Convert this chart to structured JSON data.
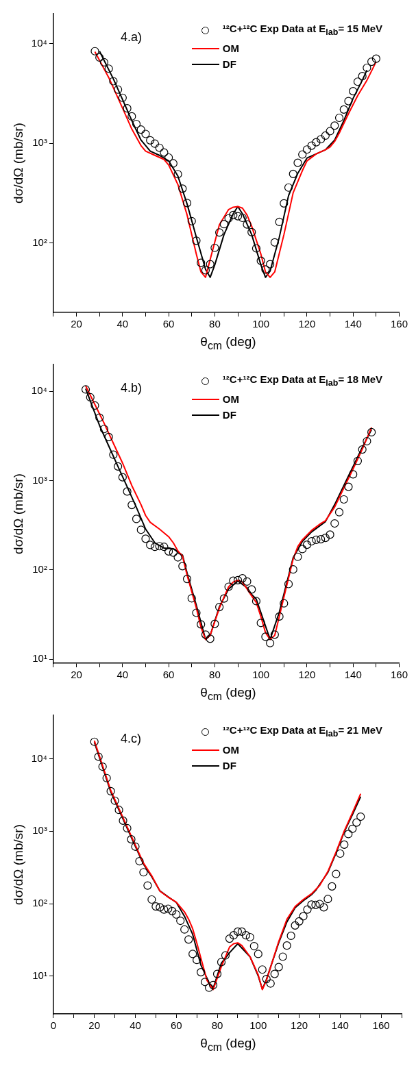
{
  "chart_data": [
    {
      "type": "scatter",
      "xlabel": "θ$_{cm}$ (deg)",
      "ylabel": "dσ/dΩ (mb/sr)",
      "log": "y",
      "xlim": [
        10,
        160
      ],
      "ylim": [
        20,
        20000
      ],
      "xticks": [
        {
          "value": 10,
          "label": null
        },
        20,
        {
          "value": 30,
          "label": null
        },
        40,
        {
          "value": 50,
          "label": null
        },
        60,
        {
          "value": 70,
          "label": null
        },
        80,
        {
          "value": 90,
          "label": null
        },
        100,
        {
          "value": 110,
          "label": null
        },
        120,
        {
          "value": 130,
          "label": null
        },
        140,
        {
          "value": 150,
          "label": null
        },
        160
      ],
      "yticks": [
        {
          "value": 100,
          "label": "10²"
        },
        {
          "value": 1000,
          "label": "10³"
        },
        {
          "value": 10000,
          "label": "10⁴"
        }
      ],
      "legend": "top right",
      "grid": false,
      "annotations": [
        "4.a)"
      ],
      "series": [
        {
          "name": "¹²C+¹²C Exp Data at E$_{lab}$= 15 MeV",
          "marker": "circle",
          "color": "#000000",
          "x": [
            28,
            30,
            32,
            34,
            36,
            38,
            40,
            42,
            44,
            46,
            48,
            50,
            52,
            54,
            56,
            58,
            60,
            62,
            64,
            66,
            68,
            70,
            72,
            74,
            76,
            78,
            80,
            82,
            84,
            86,
            88,
            90,
            92,
            94,
            96,
            98,
            100,
            102,
            104,
            106,
            108,
            110,
            112,
            114,
            116,
            118,
            120,
            122,
            124,
            126,
            128,
            130,
            132,
            134,
            136,
            138,
            140,
            142,
            144,
            146,
            148,
            150
          ],
          "values": [
            8400,
            7260,
            6500,
            5610,
            4200,
            3460,
            2860,
            2240,
            1860,
            1560,
            1370,
            1240,
            1070,
            990,
            900,
            807,
            718,
            628,
            489,
            350,
            251,
            165,
            105,
            63,
            53,
            61,
            89,
            127,
            154,
            176,
            190,
            185,
            178,
            153,
            128,
            88,
            66,
            54,
            61,
            101,
            162,
            249,
            359,
            492,
            636,
            771,
            865,
            946,
            1023,
            1097,
            1193,
            1322,
            1503,
            1800,
            2180,
            2650,
            3330,
            4150,
            4720,
            5720,
            6590,
            7070
          ]
        },
        {
          "name": "OM",
          "type": "line",
          "marker": "none",
          "line_style": "solid",
          "color": "#ff0000",
          "x": [
            28,
            34,
            40,
            44,
            48,
            50,
            54,
            58,
            60,
            64,
            68,
            72,
            74,
            76,
            78,
            82,
            86,
            88,
            90,
            92,
            94,
            96,
            100,
            102,
            104,
            106,
            110,
            114,
            118,
            120,
            124,
            128,
            130,
            132,
            134,
            138,
            142,
            146,
            150
          ],
          "values": [
            8300,
            4570,
            2250,
            1390,
            946,
            832,
            756,
            687,
            604,
            385,
            190,
            77,
            51,
            45,
            68,
            152,
            216,
            228,
            231,
            223,
            190,
            147,
            77,
            51,
            45,
            51,
            121,
            318,
            531,
            665,
            782,
            859,
            917,
            1043,
            1265,
            1980,
            3010,
            4290,
            6590
          ]
        },
        {
          "name": "DF",
          "type": "line",
          "marker": "none",
          "line_style": "solid",
          "color": "#000000",
          "x": [
            30,
            36,
            40,
            44,
            48,
            52,
            56,
            60,
            64,
            68,
            72,
            76,
            78,
            80,
            84,
            88,
            90,
            92,
            96,
            100,
            102,
            104,
            108,
            112,
            116,
            120,
            124,
            128,
            132,
            136,
            140,
            144,
            146
          ],
          "values": [
            8400,
            4430,
            2740,
            1690,
            1076,
            832,
            756,
            665,
            468,
            245,
            114,
            54,
            45,
            60,
            121,
            196,
            231,
            196,
            121,
            60,
            45,
            52,
            114,
            298,
            498,
            710,
            782,
            859,
            1076,
            1690,
            2820,
            4290,
            5430
          ]
        }
      ]
    },
    {
      "type": "scatter",
      "xlabel": "θ$_{cm}$ (deg)",
      "ylabel": "dσ/dΩ (mb/sr)",
      "log": "y",
      "xlim": [
        10,
        160
      ],
      "ylim": [
        9,
        20000
      ],
      "xticks": [
        {
          "value": 10,
          "label": null
        },
        20,
        {
          "value": 30,
          "label": null
        },
        40,
        {
          "value": 50,
          "label": null
        },
        60,
        {
          "value": 70,
          "label": null
        },
        80,
        {
          "value": 90,
          "label": null
        },
        100,
        {
          "value": 110,
          "label": null
        },
        120,
        {
          "value": 130,
          "label": null
        },
        140,
        {
          "value": 150,
          "label": null
        },
        160
      ],
      "yticks": [
        {
          "value": 10,
          "label": "10¹"
        },
        {
          "value": 100,
          "label": "10²"
        },
        {
          "value": 1000,
          "label": "10³"
        },
        {
          "value": 10000,
          "label": "10⁴"
        }
      ],
      "legend": "top right",
      "grid": false,
      "annotations": [
        "4.b)"
      ],
      "series": [
        {
          "name": "¹²C+¹²C Exp Data at E$_{lab}$= 18 MeV",
          "marker": "circle",
          "color": "#000000",
          "x": [
            24,
            26,
            28,
            30,
            32,
            34,
            36,
            38,
            40,
            42,
            44,
            46,
            48,
            50,
            52,
            54,
            56,
            58,
            60,
            62,
            64,
            66,
            68,
            70,
            72,
            74,
            76,
            78,
            80,
            82,
            84,
            86,
            88,
            90,
            92,
            94,
            96,
            98,
            100,
            102,
            104,
            106,
            108,
            110,
            112,
            114,
            116,
            118,
            120,
            122,
            124,
            126,
            128,
            130,
            132,
            134,
            136,
            138,
            140,
            142,
            144,
            146,
            148
          ],
          "values": [
            10500,
            8570,
            6930,
            5080,
            3780,
            3080,
            1950,
            1440,
            1090,
            755,
            533,
            372,
            281,
            223,
            190,
            181,
            184,
            181,
            161,
            156,
            138,
            110,
            79,
            48,
            33,
            24.5,
            18.8,
            16.9,
            24.8,
            38.3,
            47.7,
            64.6,
            75.5,
            76.6,
            80.4,
            74,
            60.3,
            44.6,
            25.4,
            17.8,
            15.1,
            18.8,
            30,
            42.1,
            69.3,
            101,
            140,
            171,
            191,
            209,
            217,
            220,
            228,
            248,
            331,
            442,
            615,
            851,
            1175,
            1660,
            2230,
            2760,
            3480
          ]
        },
        {
          "name": "OM",
          "type": "line",
          "marker": "none",
          "line_style": "solid",
          "color": "#ff0000",
          "x": [
            24,
            32,
            36,
            40,
            44,
            48,
            50,
            52,
            56,
            60,
            62,
            64,
            66,
            68,
            72,
            74,
            76,
            78,
            80,
            82,
            84,
            86,
            88,
            90,
            92,
            94,
            96,
            98,
            100,
            102,
            104,
            106,
            108,
            110,
            112,
            114,
            116,
            118,
            122,
            126,
            128,
            132,
            136,
            140,
            144,
            148
          ],
          "values": [
            11500,
            4390,
            2620,
            1570,
            880,
            538,
            406,
            341,
            286,
            235,
            201,
            163,
            142,
            87,
            37.4,
            22.8,
            16.6,
            18.4,
            26.2,
            37.3,
            49.5,
            64.6,
            72.9,
            76.5,
            72.9,
            61,
            51,
            43,
            30,
            19.8,
            16.6,
            18.4,
            30,
            49.5,
            81,
            132,
            182,
            217,
            277,
            331,
            355,
            505,
            826,
            1350,
            2250,
            3940
          ]
        },
        {
          "name": "DF",
          "type": "line",
          "marker": "none",
          "line_style": "solid",
          "color": "#000000",
          "x": [
            24,
            30,
            34,
            38,
            42,
            46,
            50,
            54,
            58,
            62,
            66,
            68,
            72,
            76,
            78,
            82,
            86,
            90,
            94,
            96,
            98,
            104,
            108,
            114,
            118,
            122,
            128,
            132,
            136,
            140,
            144,
            148
          ],
          "values": [
            10700,
            4150,
            2440,
            1440,
            851,
            500,
            286,
            201,
            175,
            172,
            146,
            92,
            40,
            16.6,
            18.4,
            38.6,
            61,
            75,
            63,
            53,
            47,
            16.6,
            33.6,
            137,
            208,
            266,
            347,
            538,
            880,
            1440,
            2360,
            3730
          ]
        }
      ]
    },
    {
      "type": "scatter",
      "xlabel": "θ$_{cm}$ (deg)",
      "ylabel": "dσ/dΩ (mb/sr)",
      "log": "y",
      "xlim": [
        0,
        170
      ],
      "ylim": [
        3,
        40000
      ],
      "xticks": [
        0,
        {
          "value": 10,
          "label": null
        },
        20,
        {
          "value": 30,
          "label": null
        },
        40,
        {
          "value": 50,
          "label": null
        },
        60,
        {
          "value": 70,
          "label": null
        },
        80,
        {
          "value": 90,
          "label": null
        },
        100,
        {
          "value": 110,
          "label": null
        },
        120,
        {
          "value": 130,
          "label": null
        },
        140,
        {
          "value": 150,
          "label": null
        },
        160,
        {
          "value": 170,
          "label": null
        }
      ],
      "yticks": [
        {
          "value": 10,
          "label": "10¹"
        },
        {
          "value": 100,
          "label": "10²"
        },
        {
          "value": 1000,
          "label": "10³"
        },
        {
          "value": 10000,
          "label": "10⁴"
        }
      ],
      "legend": "top right",
      "grid": false,
      "annotations": [
        "4.c)"
      ],
      "series": [
        {
          "name": "¹²C+¹²C Exp Data at E$_{lab}$= 21 MeV",
          "marker": "circle",
          "color": "#000000",
          "x": [
            20,
            22,
            24,
            26,
            28,
            30,
            32,
            34,
            36,
            38,
            40,
            42,
            44,
            46,
            48,
            50,
            52,
            54,
            56,
            58,
            60,
            62,
            64,
            66,
            68,
            70,
            72,
            74,
            76,
            78,
            80,
            82,
            84,
            86,
            88,
            90,
            92,
            94,
            96,
            98,
            100,
            102,
            104,
            106,
            108,
            110,
            112,
            114,
            116,
            118,
            120,
            122,
            124,
            126,
            128,
            130,
            132,
            134,
            136,
            138,
            140,
            142,
            144,
            146,
            148,
            150
          ],
          "values": [
            17200,
            10700,
            7800,
            5420,
            3570,
            2640,
            1970,
            1400,
            1100,
            773,
            613,
            386,
            271,
            178,
            114,
            91.5,
            89,
            83,
            85,
            79,
            71,
            58,
            44,
            32,
            20.2,
            16.7,
            11.3,
            8.3,
            6.9,
            7.5,
            10.7,
            15.6,
            19.3,
            32.9,
            36.6,
            41.1,
            41.1,
            36.6,
            34.4,
            25.9,
            20.2,
            12.3,
            9.1,
            7.9,
            10.7,
            13.3,
            18.5,
            26.4,
            36,
            50,
            57,
            67,
            83,
            97,
            96,
            99,
            89,
            116,
            173,
            257,
            491,
            653,
            915,
            1080,
            1320,
            1590
          ]
        },
        {
          "name": "OM",
          "type": "line",
          "marker": "none",
          "line_style": "solid",
          "color": "#ff0000",
          "x": [
            20,
            28,
            36,
            40,
            44,
            48,
            52,
            56,
            60,
            64,
            66,
            68,
            70,
            72,
            75,
            78,
            82,
            86,
            88,
            90,
            92,
            96,
            100,
            102,
            104,
            110,
            114,
            118,
            122,
            126,
            130,
            134,
            138,
            142,
            146,
            150
          ],
          "values": [
            17800,
            3660,
            1150,
            647,
            363,
            243,
            149,
            123,
            105,
            77,
            61,
            45,
            28.8,
            17.7,
            8.7,
            6.5,
            13.5,
            25.2,
            28,
            28.8,
            26.4,
            18.5,
            10.4,
            6.5,
            8.7,
            30,
            61,
            91,
            114,
            137,
            178,
            278,
            518,
            1010,
            1800,
            3290
          ]
        },
        {
          "name": "DF",
          "type": "line",
          "marker": "none",
          "line_style": "solid",
          "color": "#000000",
          "x": [
            20,
            28,
            36,
            40,
            44,
            48,
            52,
            56,
            60,
            64,
            68,
            72,
            76,
            78,
            82,
            86,
            90,
            96,
            100,
            102,
            104,
            110,
            114,
            118,
            122,
            126,
            128,
            134,
            138,
            142,
            146,
            150
          ],
          "values": [
            16900,
            3500,
            1100,
            620,
            350,
            235,
            150,
            124,
            104,
            67,
            37.6,
            14.2,
            8.1,
            6.8,
            15.1,
            21,
            28,
            18.5,
            10,
            6.6,
            9,
            28.8,
            56,
            88,
            110,
            133,
            152,
            270,
            500,
            980,
            1700,
            3010
          ]
        }
      ]
    }
  ]
}
